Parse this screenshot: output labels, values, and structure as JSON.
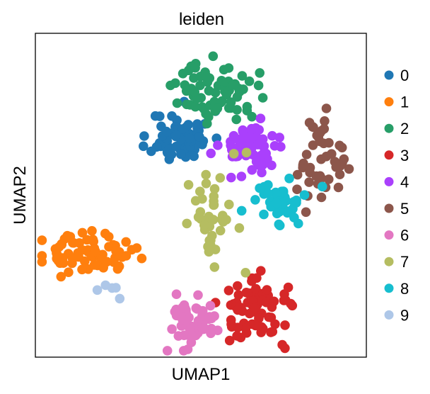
{
  "chart_data": {
    "type": "scatter",
    "title": "leiden",
    "xlabel": "UMAP1",
    "ylabel": "UMAP2",
    "xlim": [
      0,
      100
    ],
    "ylim": [
      0,
      100
    ],
    "grid": false,
    "legend_position": "right",
    "point_clouds": [
      {
        "label": "0",
        "color": "#1f77b4",
        "cx": 44,
        "cy": 68,
        "sx": 4.5,
        "sy": 4.0,
        "n": 70,
        "seed": 11
      },
      {
        "label": "1",
        "color": "#ff7f0e",
        "cx": 15,
        "cy": 32,
        "sx": 6.8,
        "sy": 2.8,
        "n": 75,
        "seed": 23
      },
      {
        "label": "2",
        "color": "#279e68",
        "cx": 55,
        "cy": 82,
        "sx": 6.0,
        "sy": 4.5,
        "n": 70,
        "seed": 37
      },
      {
        "label": "3",
        "color": "#d62728",
        "cx": 68,
        "cy": 15,
        "sx": 5.8,
        "sy": 4.8,
        "n": 75,
        "seed": 41
      },
      {
        "label": "4",
        "color": "#aa40fc",
        "cx": 65,
        "cy": 65,
        "sx": 4.5,
        "sy": 4.0,
        "n": 70,
        "seed": 53
      },
      {
        "label": "5",
        "color": "#8c564b",
        "cx": 86,
        "cy": 59,
        "sx": 4.0,
        "sy": 7.0,
        "n": 45,
        "seed": 67
      },
      {
        "label": "6",
        "color": "#e377c2",
        "cx": 48,
        "cy": 10,
        "sx": 3.8,
        "sy": 4.0,
        "n": 60,
        "seed": 71
      },
      {
        "label": "7",
        "color": "#b5bd61",
        "cx": 54,
        "cy": 43,
        "sx": 4.0,
        "sy": 8.0,
        "n": 40,
        "seed": 83
      },
      {
        "label": "8",
        "color": "#17becf",
        "cx": 72,
        "cy": 48,
        "sx": 4.8,
        "sy": 3.5,
        "n": 50,
        "seed": 97
      },
      {
        "label": "9",
        "color": "#aec7e8",
        "cx": 22,
        "cy": 21,
        "sx": 2.2,
        "sy": 1.5,
        "n": 5,
        "seed": 101
      }
    ]
  }
}
